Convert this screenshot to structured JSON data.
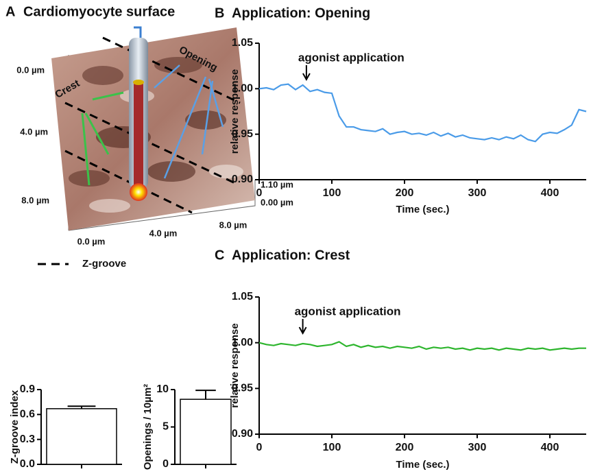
{
  "panel_a": {
    "letter": "A",
    "title": "Cardiomyocyte surface",
    "y_axis_labels": [
      "0.0 µm",
      "4.0 µm",
      "8.0 µm"
    ],
    "x_axis_labels": [
      "0.0 µm",
      "4.0 µm",
      "8.0 µm"
    ],
    "z_axis_labels": [
      "1.10 µm",
      "0.00 µm"
    ],
    "crest": "Crest",
    "opening": "Opening",
    "legend": "Z-groove"
  },
  "chart_data": [
    {
      "type": "bar",
      "ylabel": "Z-groove index",
      "categories": [
        null
      ],
      "values": [
        0.67
      ],
      "errors": [
        0.03
      ],
      "color": "#ffffff",
      "ylim": [
        0,
        0.9
      ],
      "yticks": [
        {
          "value": 0,
          "label": "0.0"
        },
        0.3,
        0.6,
        0.9
      ]
    },
    {
      "type": "bar",
      "ylabel": "Openings / 10µm²",
      "categories": [
        null
      ],
      "values": [
        8.7
      ],
      "errors": [
        1.2
      ],
      "color": "#ffffff",
      "ylim": [
        0,
        10
      ],
      "yticks": [
        0,
        5,
        10
      ]
    },
    {
      "type": "line",
      "label": "B",
      "title": "Application: Opening",
      "xlabel": "Time (sec.)",
      "ylabel": "relative response",
      "annotation": {
        "text": "agonist application",
        "x": 65
      },
      "xlim": [
        0,
        450
      ],
      "xticks": [
        0,
        100,
        200,
        300,
        400
      ],
      "ylim": [
        0.9,
        1.05
      ],
      "yticks": [
        {
          "value": 0.9,
          "label": "0.90"
        },
        0.95,
        {
          "value": 1,
          "label": "1.00"
        },
        1.05
      ],
      "x": [
        0,
        10,
        20,
        30,
        40,
        50,
        60,
        70,
        80,
        90,
        100,
        110,
        120,
        130,
        140,
        150,
        160,
        170,
        180,
        190,
        200,
        210,
        220,
        230,
        240,
        250,
        260,
        270,
        280,
        290,
        300,
        310,
        320,
        330,
        340,
        350,
        360,
        370,
        380,
        390,
        400,
        410,
        420,
        430,
        440,
        450
      ],
      "series": [
        {
          "color": "#4a9be8",
          "values": [
            1.0,
            1.001,
            0.999,
            1.004,
            1.005,
            0.999,
            1.004,
            0.997,
            0.999,
            0.996,
            0.995,
            0.97,
            0.958,
            0.958,
            0.955,
            0.954,
            0.953,
            0.956,
            0.95,
            0.952,
            0.953,
            0.95,
            0.951,
            0.949,
            0.952,
            0.948,
            0.951,
            0.947,
            0.949,
            0.946,
            0.945,
            0.944,
            0.946,
            0.944,
            0.947,
            0.945,
            0.949,
            0.944,
            0.942,
            0.95,
            0.952,
            0.951,
            0.955,
            0.96,
            0.977,
            0.975
          ]
        }
      ]
    },
    {
      "type": "line",
      "label": "C",
      "title": "Application: Crest",
      "xlabel": "Time (sec.)",
      "ylabel": "relative response",
      "annotation": {
        "text": "agonist application",
        "x": 60
      },
      "xlim": [
        0,
        450
      ],
      "xticks": [
        0,
        100,
        200,
        300,
        400
      ],
      "ylim": [
        0.9,
        1.05
      ],
      "yticks": [
        {
          "value": 0.9,
          "label": "0.90"
        },
        0.95,
        {
          "value": 1,
          "label": "1.00"
        },
        1.05
      ],
      "x": [
        0,
        10,
        20,
        30,
        40,
        50,
        60,
        70,
        80,
        90,
        100,
        110,
        120,
        130,
        140,
        150,
        160,
        170,
        180,
        190,
        200,
        210,
        220,
        230,
        240,
        250,
        260,
        270,
        280,
        290,
        300,
        310,
        320,
        330,
        340,
        350,
        360,
        370,
        380,
        390,
        400,
        410,
        420,
        430,
        440,
        450
      ],
      "series": [
        {
          "color": "#2db52d",
          "values": [
            1.0,
            0.998,
            0.997,
            0.999,
            0.998,
            0.997,
            0.999,
            0.998,
            0.996,
            0.997,
            0.998,
            1.001,
            0.996,
            0.998,
            0.995,
            0.997,
            0.995,
            0.996,
            0.994,
            0.996,
            0.995,
            0.994,
            0.996,
            0.993,
            0.995,
            0.994,
            0.995,
            0.993,
            0.994,
            0.992,
            0.994,
            0.993,
            0.994,
            0.992,
            0.994,
            0.993,
            0.992,
            0.994,
            0.993,
            0.994,
            0.992,
            0.993,
            0.994,
            0.993,
            0.994,
            0.994
          ]
        }
      ]
    }
  ]
}
